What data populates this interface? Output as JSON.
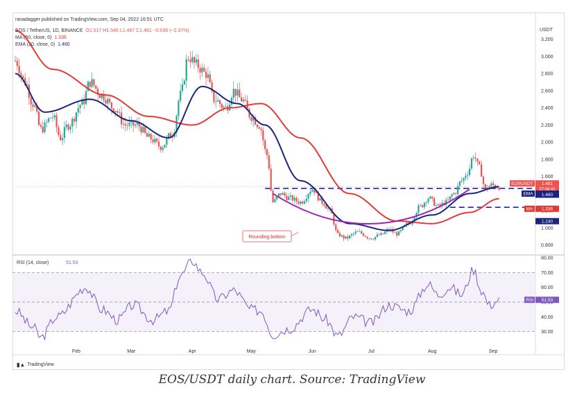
{
  "header": {
    "published": "ranadagger published on TradingView.com, Sep 04, 2022 16:51 UTC",
    "symbol_line": "EOS / TetherUS, 1D, BINANCE",
    "ohlc": "O1.517  H1.546  L1.467  C1.481  −0.036 (−2.37%)",
    "ma_line": "MA (50, close, 0)",
    "ma_value": "1.336",
    "ema_line": "EMA (20, close, 0)",
    "ema_value": "1.480"
  },
  "colors": {
    "up": "#26a69a",
    "down": "#ef5350",
    "ema": "#1a237e",
    "ma": "#e53935",
    "rsi": "#7e57c2",
    "rounding": "#9c27b0",
    "level": "#1a23c8"
  },
  "axis_currency": "USDT",
  "footer": {
    "brand": "TradingView"
  },
  "caption": "EOS/USDT daily chart. Source: TradingView",
  "chart_data": [
    {
      "type": "candlestick",
      "title": "EOS / TetherUS, 1D, BINANCE",
      "ylabel": "USDT",
      "ylim": [
        0.7,
        3.4
      ],
      "y_ticks": [
        "0.800",
        "1.000",
        "1.200",
        "1.400",
        "1.600",
        "1.800",
        "2.000",
        "2.200",
        "2.400",
        "2.600",
        "2.800",
        "3.000",
        "3.200"
      ],
      "x_ticks": [
        "Feb",
        "Mar",
        "Apr",
        "May",
        "Jun",
        "Jul",
        "Aug",
        "Sep"
      ],
      "close_keypoints": [
        {
          "date": "Jan 01",
          "value": 2.95
        },
        {
          "date": "Jan 06",
          "value": 2.7
        },
        {
          "date": "Jan 10",
          "value": 2.45
        },
        {
          "date": "Jan 14",
          "value": 2.15
        },
        {
          "date": "Jan 20",
          "value": 2.3
        },
        {
          "date": "Jan 24",
          "value": 2.05
        },
        {
          "date": "Jan 28",
          "value": 2.2
        },
        {
          "date": "Feb 04",
          "value": 2.45
        },
        {
          "date": "Feb 08",
          "value": 2.7
        },
        {
          "date": "Feb 14",
          "value": 2.55
        },
        {
          "date": "Feb 20",
          "value": 2.4
        },
        {
          "date": "Feb 26",
          "value": 2.2
        },
        {
          "date": "Mar 04",
          "value": 2.2
        },
        {
          "date": "Mar 10",
          "value": 2.05
        },
        {
          "date": "Mar 16",
          "value": 1.95
        },
        {
          "date": "Mar 22",
          "value": 2.1
        },
        {
          "date": "Mar 26",
          "value": 2.55
        },
        {
          "date": "Mar 30",
          "value": 3.0
        },
        {
          "date": "Apr 03",
          "value": 2.9
        },
        {
          "date": "Apr 08",
          "value": 2.8
        },
        {
          "date": "Apr 12",
          "value": 2.5
        },
        {
          "date": "Apr 18",
          "value": 2.4
        },
        {
          "date": "Apr 22",
          "value": 2.6
        },
        {
          "date": "Apr 26",
          "value": 2.5
        },
        {
          "date": "May 01",
          "value": 2.3
        },
        {
          "date": "May 05",
          "value": 2.2
        },
        {
          "date": "May 09",
          "value": 1.85
        },
        {
          "date": "May 12",
          "value": 1.3
        },
        {
          "date": "May 16",
          "value": 1.4
        },
        {
          "date": "May 20",
          "value": 1.35
        },
        {
          "date": "May 26",
          "value": 1.3
        },
        {
          "date": "Jun 01",
          "value": 1.45
        },
        {
          "date": "Jun 06",
          "value": 1.3
        },
        {
          "date": "Jun 10",
          "value": 1.2
        },
        {
          "date": "Jun 14",
          "value": 0.92
        },
        {
          "date": "Jun 18",
          "value": 0.88
        },
        {
          "date": "Jun 24",
          "value": 0.95
        },
        {
          "date": "Jul 01",
          "value": 0.88
        },
        {
          "date": "Jul 06",
          "value": 0.92
        },
        {
          "date": "Jul 10",
          "value": 0.98
        },
        {
          "date": "Jul 14",
          "value": 0.93
        },
        {
          "date": "Jul 20",
          "value": 1.05
        },
        {
          "date": "Jul 26",
          "value": 1.25
        },
        {
          "date": "Jul 30",
          "value": 1.35
        },
        {
          "date": "Aug 04",
          "value": 1.25
        },
        {
          "date": "Aug 08",
          "value": 1.3
        },
        {
          "date": "Aug 12",
          "value": 1.4
        },
        {
          "date": "Aug 16",
          "value": 1.55
        },
        {
          "date": "Aug 19",
          "value": 1.65
        },
        {
          "date": "Aug 22",
          "value": 1.85
        },
        {
          "date": "Aug 25",
          "value": 1.7
        },
        {
          "date": "Aug 28",
          "value": 1.45
        },
        {
          "date": "Aug 31",
          "value": 1.5
        },
        {
          "date": "Sep 04",
          "value": 1.48
        }
      ],
      "ema20_keypoints": [
        {
          "date": "Jan 01",
          "value": 2.8
        },
        {
          "date": "Jan 16",
          "value": 2.35
        },
        {
          "date": "Feb 08",
          "value": 2.5
        },
        {
          "date": "Mar 01",
          "value": 2.25
        },
        {
          "date": "Mar 20",
          "value": 2.05
        },
        {
          "date": "Apr 06",
          "value": 2.65
        },
        {
          "date": "Apr 24",
          "value": 2.45
        },
        {
          "date": "May 08",
          "value": 2.2
        },
        {
          "date": "May 26",
          "value": 1.55
        },
        {
          "date": "Jun 20",
          "value": 1.05
        },
        {
          "date": "Jul 10",
          "value": 0.97
        },
        {
          "date": "Aug 01",
          "value": 1.15
        },
        {
          "date": "Aug 20",
          "value": 1.4
        },
        {
          "date": "Sep 04",
          "value": 1.48
        }
      ],
      "ma50_keypoints": [
        {
          "date": "Jan 01",
          "value": 3.3
        },
        {
          "date": "Jan 20",
          "value": 2.85
        },
        {
          "date": "Feb 16",
          "value": 2.55
        },
        {
          "date": "Mar 10",
          "value": 2.3
        },
        {
          "date": "Apr 01",
          "value": 2.2
        },
        {
          "date": "Apr 20",
          "value": 2.4
        },
        {
          "date": "May 06",
          "value": 2.45
        },
        {
          "date": "May 26",
          "value": 2.05
        },
        {
          "date": "Jun 20",
          "value": 1.4
        },
        {
          "date": "Jul 14",
          "value": 1.08
        },
        {
          "date": "Aug 01",
          "value": 1.05
        },
        {
          "date": "Aug 20",
          "value": 1.18
        },
        {
          "date": "Sep 04",
          "value": 1.34
        }
      ],
      "levels": [
        {
          "label": "1.460",
          "value": 1.46
        },
        {
          "label": "1.240",
          "value": 1.24
        }
      ],
      "price_tags": [
        {
          "label": "EOSUSDT",
          "value": "1.481",
          "sub": "07:08:41"
        },
        {
          "label": "EMA",
          "value": "1.480"
        },
        {
          "label": "MA",
          "value": "1.336"
        }
      ],
      "annotation": "Rounding bottom"
    },
    {
      "type": "line",
      "title": "RSI (14, close)",
      "title_value": "51.53",
      "ylim": [
        20,
        80
      ],
      "y_ticks": [
        "30.00",
        "40.00",
        "50.00",
        "60.00",
        "70.00",
        "80.00"
      ],
      "band": [
        30,
        70
      ],
      "rsi_keypoints": [
        {
          "date": "Jan 01",
          "value": 44
        },
        {
          "date": "Jan 10",
          "value": 33
        },
        {
          "date": "Jan 14",
          "value": 26
        },
        {
          "date": "Jan 22",
          "value": 40
        },
        {
          "date": "Feb 06",
          "value": 60
        },
        {
          "date": "Feb 14",
          "value": 45
        },
        {
          "date": "Feb 22",
          "value": 38
        },
        {
          "date": "Mar 02",
          "value": 48
        },
        {
          "date": "Mar 12",
          "value": 38
        },
        {
          "date": "Mar 20",
          "value": 44
        },
        {
          "date": "Mar 26",
          "value": 68
        },
        {
          "date": "Apr 01",
          "value": 78
        },
        {
          "date": "Apr 06",
          "value": 70
        },
        {
          "date": "Apr 14",
          "value": 52
        },
        {
          "date": "Apr 22",
          "value": 58
        },
        {
          "date": "May 01",
          "value": 45
        },
        {
          "date": "May 06",
          "value": 44
        },
        {
          "date": "May 12",
          "value": 28
        },
        {
          "date": "May 20",
          "value": 32
        },
        {
          "date": "Jun 01",
          "value": 45
        },
        {
          "date": "Jun 08",
          "value": 38
        },
        {
          "date": "Jun 14",
          "value": 27
        },
        {
          "date": "Jun 22",
          "value": 40
        },
        {
          "date": "Jul 01",
          "value": 36
        },
        {
          "date": "Jul 10",
          "value": 48
        },
        {
          "date": "Jul 20",
          "value": 44
        },
        {
          "date": "Jul 30",
          "value": 62
        },
        {
          "date": "Aug 04",
          "value": 55
        },
        {
          "date": "Aug 10",
          "value": 60
        },
        {
          "date": "Aug 16",
          "value": 55
        },
        {
          "date": "Aug 22",
          "value": 72
        },
        {
          "date": "Aug 26",
          "value": 58
        },
        {
          "date": "Aug 30",
          "value": 48
        },
        {
          "date": "Sep 04",
          "value": 51.53
        }
      ],
      "value_tag": {
        "label": "RSI",
        "value": "51.53"
      }
    }
  ]
}
